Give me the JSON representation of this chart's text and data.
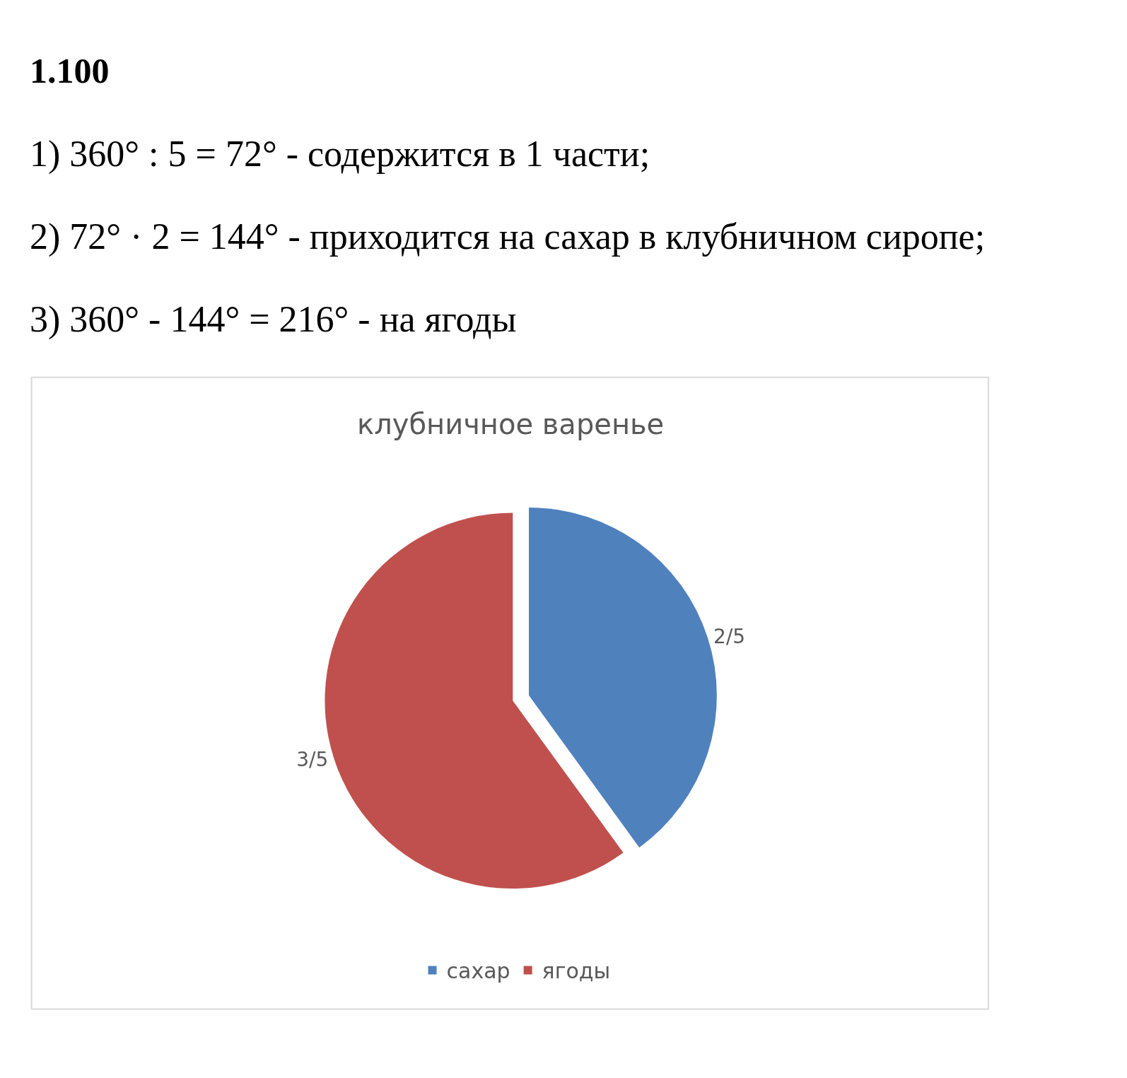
{
  "chart_data": {
    "type": "pie",
    "title": "клубничное варенье",
    "annotations": [
      "1.100",
      "1) 360° : 5 = 72° - содержится в 1 части;",
      "2) 72° · 2 = 144° - приходится на сахар в клубничном сиропе;",
      "3) 360° - 144° = 216° - на ягоды"
    ],
    "categories": [
      "сахар",
      "ягоды"
    ],
    "values": [
      0.4,
      0.6
    ],
    "colors": [
      "#4f81bd",
      "#c0504d"
    ],
    "value_labels": [
      "2/5",
      "3/5"
    ],
    "legend": "bottom"
  }
}
